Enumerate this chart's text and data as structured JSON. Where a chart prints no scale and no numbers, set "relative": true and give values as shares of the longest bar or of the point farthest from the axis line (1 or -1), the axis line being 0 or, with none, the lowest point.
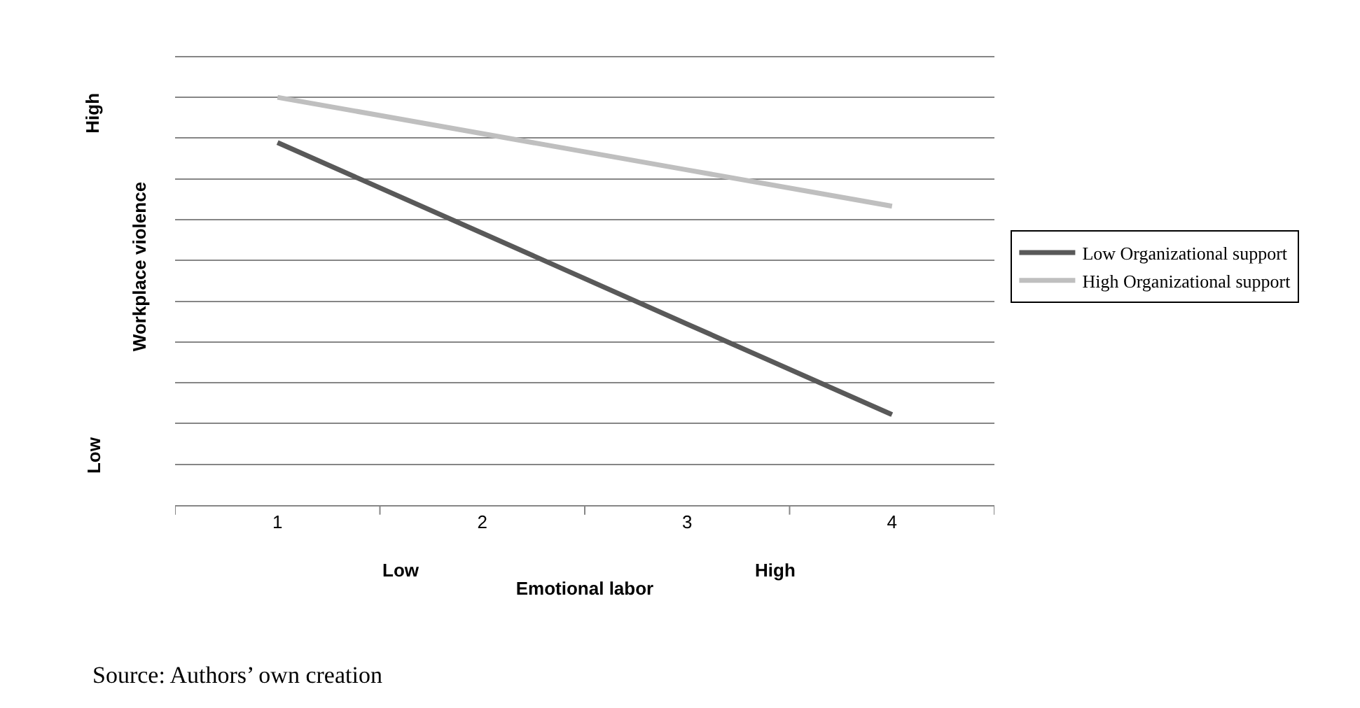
{
  "chart_data": {
    "type": "line",
    "relative": true,
    "xlabel": "Emotional labor",
    "ylabel": "Workplace violence",
    "categories": [
      "1",
      "2",
      "3",
      "4"
    ],
    "series": [
      {
        "name": "Low Organizational support",
        "color": "#595959",
        "values": [
          0.889,
          0.667,
          0.444,
          0.222
        ]
      },
      {
        "name": "High Organizational support",
        "color": "#bfbfbf",
        "values": [
          1,
          0.911,
          0.822,
          0.733
        ]
      }
    ],
    "annotations": [
      "High",
      "Low",
      "Low",
      "High",
      "Source: Authors’ own creation"
    ],
    "grid": "y",
    "legend": "right",
    "marker": "none",
    "line_style": "solid"
  }
}
